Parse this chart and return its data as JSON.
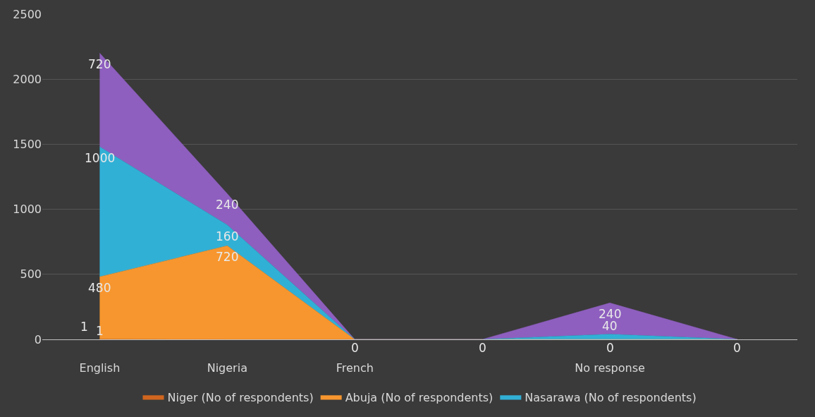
{
  "chart_data": {
    "type": "area",
    "stacked": true,
    "categories": [
      "English",
      "Nigeria",
      "French",
      null,
      "No response",
      null
    ],
    "series": [
      {
        "name": "Niger (No of respondents)",
        "color": "#d0661e",
        "values": [
          1,
          0,
          0,
          0,
          0,
          0
        ],
        "value_labels": [
          "1",
          null,
          null,
          null,
          null,
          null
        ]
      },
      {
        "name": "Abuja (No of respondents)",
        "color": "#f7962e",
        "values": [
          480,
          720,
          0,
          0,
          0,
          0
        ],
        "value_labels": [
          "480",
          "720",
          "0",
          "0",
          "0",
          "0"
        ]
      },
      {
        "name": "Nasarawa (No of respondents)",
        "color": "#31b0d6",
        "values": [
          1000,
          160,
          0,
          0,
          40,
          0
        ],
        "value_labels": [
          "1000",
          "160",
          null,
          null,
          "40",
          null
        ]
      },
      {
        "color": "#8e5fbf",
        "values": [
          720,
          240,
          0,
          0,
          240,
          0
        ],
        "value_labels": [
          "720",
          "240",
          null,
          null,
          "240",
          null
        ]
      }
    ],
    "annotations": [
      {
        "text": "1",
        "x": "English",
        "y": 1
      }
    ],
    "ylim": [
      0,
      2500
    ],
    "yticks": [
      0,
      500,
      1000,
      1500,
      2000,
      2500
    ],
    "grid": "y",
    "legend": "bottom"
  }
}
